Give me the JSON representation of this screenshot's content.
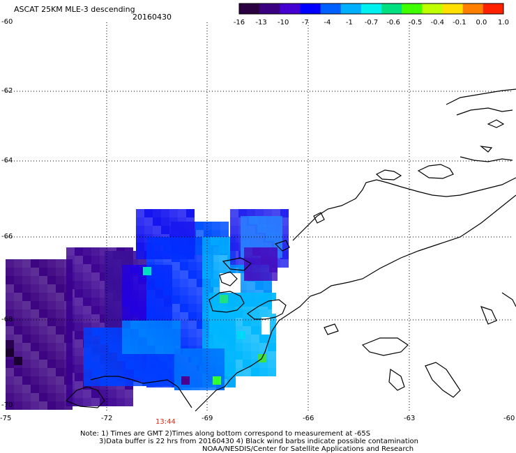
{
  "header": {
    "title": "ASCAT 25KM MLE-3 descending",
    "date": "20160430"
  },
  "colorbar": {
    "labels": [
      "-16",
      "-13",
      "-10",
      "-7",
      "-4",
      "-1",
      "-0.7",
      "-0.6",
      "-0.5",
      "-0.4",
      "-0.1",
      "0.0",
      "1.0"
    ],
    "colors": [
      "#2a0040",
      "#3a0080",
      "#4400d0",
      "#0000ff",
      "#0060ff",
      "#00b0ff",
      "#00f0f0",
      "#00e080",
      "#40ff00",
      "#c0ff00",
      "#ffe000",
      "#ff8000",
      "#ff2000"
    ]
  },
  "axes": {
    "lat_labels": [
      "-60",
      "-62",
      "-64",
      "-66",
      "-68",
      "-70"
    ],
    "lon_labels": [
      "-75",
      "-72",
      "-69",
      "-66",
      "-63",
      "-60"
    ]
  },
  "time_label": "13:44",
  "notes": {
    "line1": "Note: 1) Times are GMT 2)Times along bottom correspond to measurement at -65S",
    "line2": "3)Data buffer is 22 hrs from 20160430 4) Black wind barbs indicate possible contamination",
    "line3": "NOAA/NESDIS/Center for Satellite Applications and Research"
  },
  "colors": {
    "coast": "#000000",
    "grid": "#000000"
  }
}
